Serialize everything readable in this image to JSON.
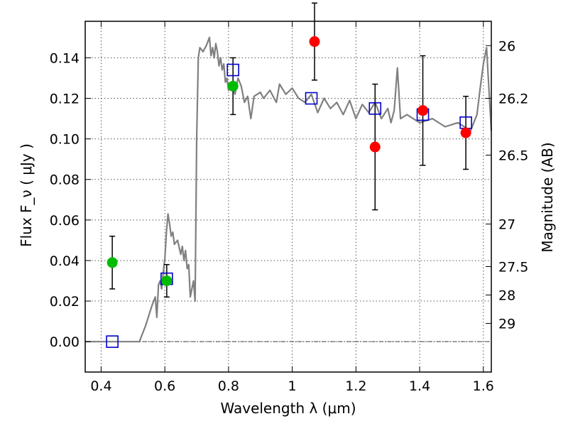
{
  "chart_data": {
    "type": "scatter",
    "xlabel": "Wavelength  λ (μm)",
    "ylabel": "Flux  F_ν  ( μJy )",
    "y2label": "Magnitude (AB)",
    "xlim": [
      0.35,
      1.625
    ],
    "ylim": [
      -0.015,
      0.158
    ],
    "grid": true,
    "x_ticks": [
      0.4,
      0.6,
      0.8,
      1.0,
      1.2,
      1.4,
      1.6
    ],
    "x_tick_labels": [
      "0.4",
      "0.6",
      "0.8",
      "1",
      "1.2",
      "1.4",
      "1.6"
    ],
    "y_ticks": [
      0.0,
      0.02,
      0.04,
      0.06,
      0.08,
      0.1,
      0.12,
      0.14
    ],
    "y_tick_labels": [
      "0.00",
      "0.02",
      "0.04",
      "0.06",
      "0.08",
      "0.10",
      "0.12",
      "0.14"
    ],
    "right_axis_ticks": [
      {
        "label": "26",
        "flux": 0.146
      },
      {
        "label": "26.2",
        "flux": 0.12
      },
      {
        "label": "26.5",
        "flux": 0.092
      },
      {
        "label": "27",
        "flux": 0.058
      },
      {
        "label": "27.5",
        "flux": 0.037
      },
      {
        "label": "28",
        "flux": 0.023
      },
      {
        "label": "29",
        "flux": 0.009
      }
    ],
    "model_sed": {
      "color": "#808080",
      "x": [
        0.35,
        0.5,
        0.52,
        0.54,
        0.56,
        0.57,
        0.575,
        0.58,
        0.585,
        0.59,
        0.595,
        0.6,
        0.605,
        0.61,
        0.615,
        0.62,
        0.625,
        0.63,
        0.64,
        0.65,
        0.655,
        0.66,
        0.665,
        0.67,
        0.675,
        0.68,
        0.69,
        0.695,
        0.7,
        0.705,
        0.71,
        0.72,
        0.73,
        0.74,
        0.745,
        0.75,
        0.755,
        0.76,
        0.765,
        0.77,
        0.775,
        0.78,
        0.785,
        0.79,
        0.795,
        0.8,
        0.81,
        0.82,
        0.83,
        0.84,
        0.85,
        0.86,
        0.87,
        0.88,
        0.9,
        0.91,
        0.93,
        0.95,
        0.96,
        0.98,
        1.0,
        1.02,
        1.04,
        1.06,
        1.08,
        1.1,
        1.12,
        1.14,
        1.16,
        1.18,
        1.2,
        1.22,
        1.24,
        1.26,
        1.28,
        1.3,
        1.31,
        1.32,
        1.33,
        1.34,
        1.36,
        1.4,
        1.44,
        1.48,
        1.52,
        1.56,
        1.58,
        1.59,
        1.6,
        1.61,
        1.625
      ],
      "y": [
        0.0,
        0.0,
        0.0,
        0.008,
        0.018,
        0.022,
        0.012,
        0.028,
        0.03,
        0.026,
        0.034,
        0.041,
        0.054,
        0.063,
        0.058,
        0.052,
        0.054,
        0.048,
        0.05,
        0.043,
        0.047,
        0.04,
        0.045,
        0.036,
        0.038,
        0.022,
        0.03,
        0.02,
        0.1,
        0.14,
        0.145,
        0.143,
        0.146,
        0.15,
        0.141,
        0.145,
        0.14,
        0.147,
        0.143,
        0.136,
        0.14,
        0.134,
        0.137,
        0.128,
        0.13,
        0.124,
        0.127,
        0.122,
        0.13,
        0.126,
        0.118,
        0.121,
        0.11,
        0.121,
        0.123,
        0.12,
        0.124,
        0.118,
        0.127,
        0.122,
        0.125,
        0.12,
        0.118,
        0.122,
        0.113,
        0.12,
        0.115,
        0.118,
        0.112,
        0.119,
        0.11,
        0.117,
        0.113,
        0.118,
        0.11,
        0.115,
        0.108,
        0.114,
        0.135,
        0.11,
        0.112,
        0.108,
        0.11,
        0.106,
        0.108,
        0.104,
        0.112,
        0.125,
        0.137,
        0.145,
        0.104
      ]
    },
    "model_photometry": {
      "color": "#0000cc",
      "marker": "open-square",
      "x": [
        0.435,
        0.606,
        0.814,
        1.06,
        1.26,
        1.41,
        1.545
      ],
      "y": [
        0.0,
        0.031,
        0.134,
        0.12,
        0.115,
        0.112,
        0.108
      ]
    },
    "observed_green": {
      "color": "#00bb00",
      "marker": "filled-circle",
      "x": [
        0.435,
        0.606,
        0.814
      ],
      "y": [
        0.039,
        0.03,
        0.126
      ],
      "err": [
        0.013,
        0.008,
        0.014
      ]
    },
    "observed_red": {
      "color": "#ff0000",
      "marker": "filled-circle",
      "x": [
        1.07,
        1.26,
        1.41,
        1.545
      ],
      "y": [
        0.148,
        0.096,
        0.114,
        0.103
      ],
      "err": [
        0.019,
        0.031,
        0.027,
        0.018
      ]
    }
  }
}
